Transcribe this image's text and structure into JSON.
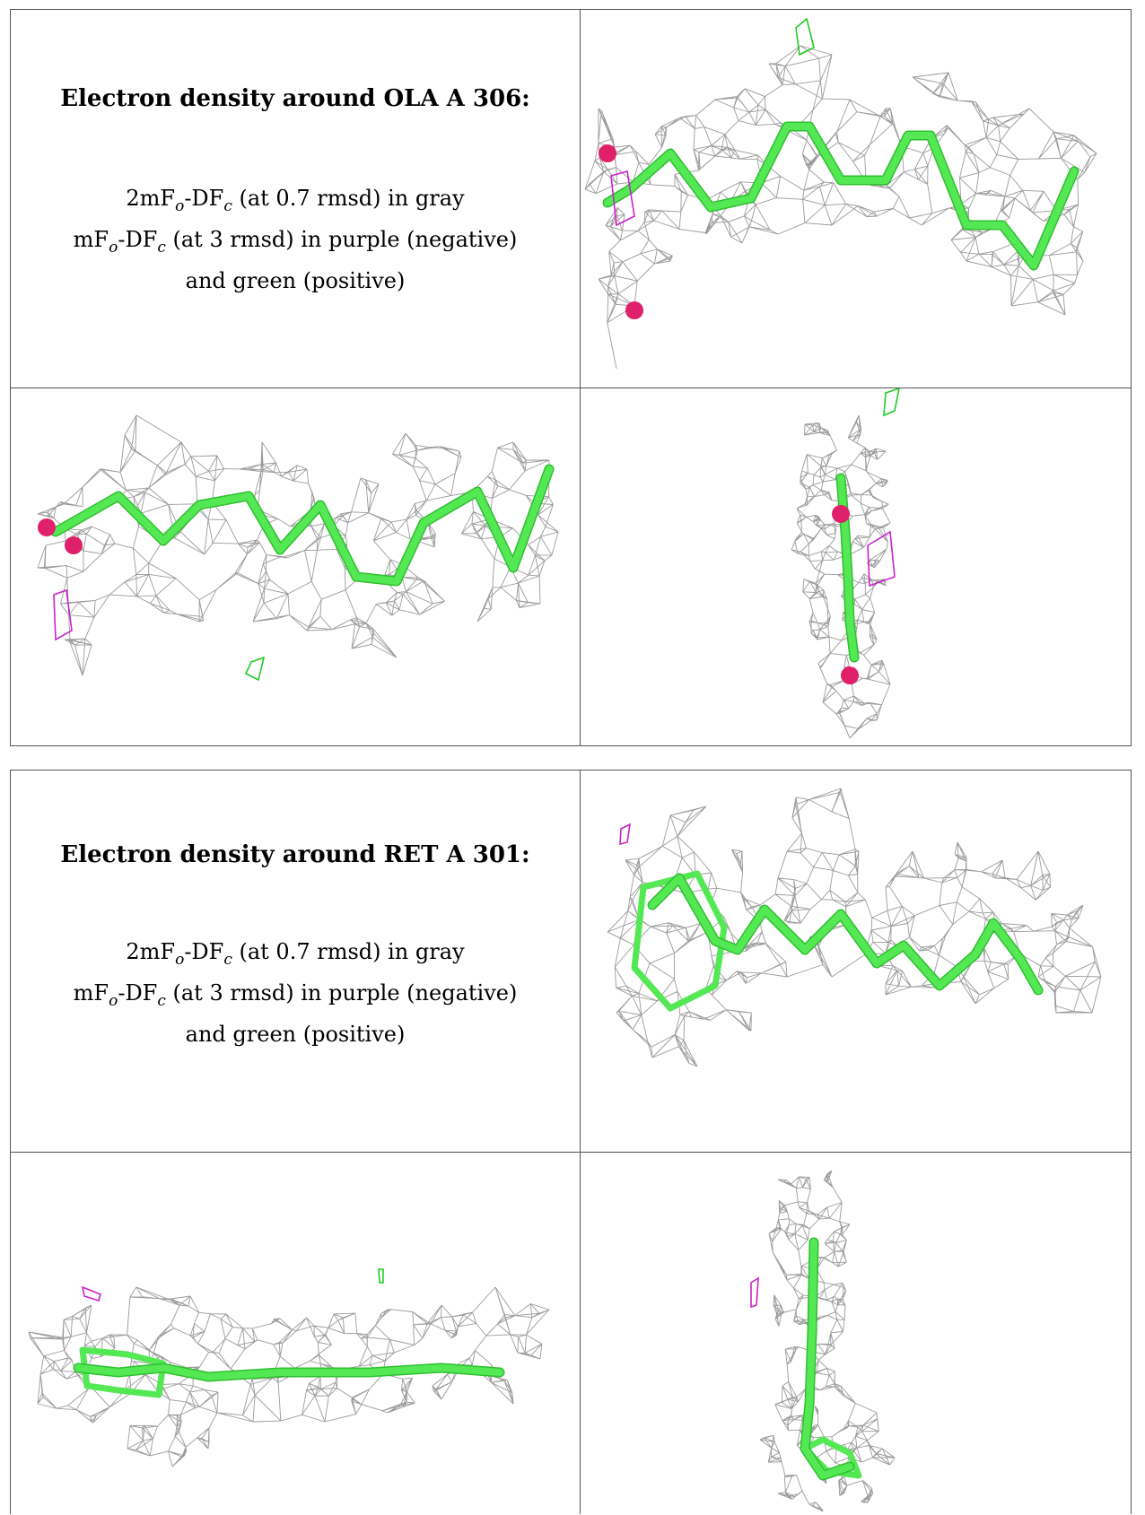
{
  "figures": [
    {
      "heading": "Electron density around OLA A 306:",
      "line1_pre": "2mF",
      "line1_sub1": "o",
      "line1_mid": "-DF",
      "line1_sub2": "c",
      "line1_post": " (at 0.7 rmsd) in gray",
      "line2_pre": "mF",
      "line2_sub1": "o",
      "line2_mid": "-DF",
      "line2_sub2": "c",
      "line2_post": " (at 3 rmsd) in purple (negative)",
      "line3": "and green (positive)"
    },
    {
      "heading": "Electron density around RET A 301:",
      "line1_pre": "2mF",
      "line1_sub1": "o",
      "line1_mid": "-DF",
      "line1_sub2": "c",
      "line1_post": " (at 0.7 rmsd) in gray",
      "line2_pre": "mF",
      "line2_sub1": "o",
      "line2_mid": "-DF",
      "line2_sub2": "c",
      "line2_post": " (at 3 rmsd) in purple (negative)",
      "line3": "and green (positive)"
    }
  ],
  "colors": {
    "mesh": "#8a8a8a",
    "ligand": "#55e855",
    "ligand_dark": "#2fbf2f",
    "oxygen": "#e0206a",
    "negative": "#cc22cc",
    "positive": "#22cc22"
  }
}
